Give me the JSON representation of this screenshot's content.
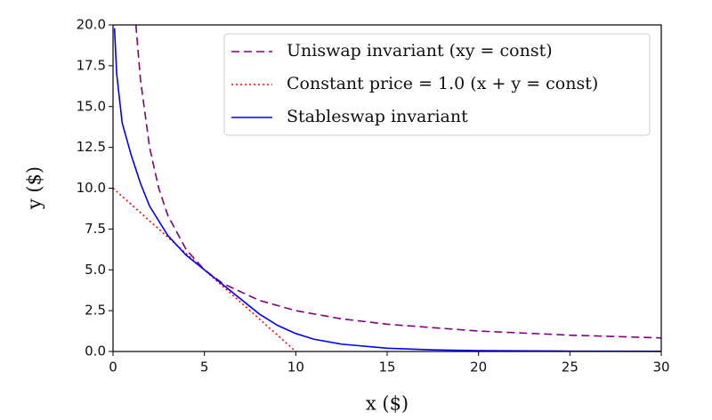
{
  "chart_data": {
    "type": "line",
    "xlabel": "x ($)",
    "ylabel": "y ($)",
    "xlim": [
      0,
      30
    ],
    "ylim": [
      0,
      20
    ],
    "xticks": [
      0,
      5,
      10,
      15,
      20,
      25,
      30
    ],
    "yticks": [
      {
        "value": 0,
        "label": "0.0"
      },
      2.5,
      {
        "value": 5,
        "label": "5.0"
      },
      7.5,
      {
        "value": 10,
        "label": "10.0"
      },
      12.5,
      {
        "value": 15,
        "label": "15.0"
      },
      17.5,
      {
        "value": 20,
        "label": "20.0"
      }
    ],
    "legend": "upper right",
    "series": [
      {
        "name": "Uniswap invariant (xy = const)",
        "color": "#800080",
        "style": "dashed",
        "x": [
          1.25,
          1.5,
          2,
          2.5,
          3,
          4,
          5,
          6,
          8,
          10,
          12.5,
          15,
          20,
          25,
          30
        ],
        "values": [
          20,
          16.67,
          12.5,
          10,
          8.33,
          6.25,
          5,
          4.17,
          3.13,
          2.5,
          2,
          1.67,
          1.25,
          1,
          0.83
        ]
      },
      {
        "name": "Constant price = 1.0 (x + y = const)",
        "color": "#ff0000",
        "style": "dotted",
        "x": [
          0,
          10
        ],
        "values": [
          10,
          0
        ]
      },
      {
        "name": "Stableswap invariant",
        "color": "#0000ff",
        "style": "solid",
        "x": [
          0.08,
          0.2,
          0.5,
          1,
          1.5,
          2,
          3,
          4,
          5,
          6,
          7,
          8,
          9,
          10,
          11,
          12.5,
          15,
          17.5,
          20,
          25,
          30
        ],
        "values": [
          19.8,
          17,
          14,
          12,
          10.3,
          8.9,
          7.1,
          5.9,
          5,
          4.1,
          3.2,
          2.3,
          1.6,
          1.1,
          0.75,
          0.45,
          0.2,
          0.1,
          0.05,
          0.02,
          0.01
        ]
      }
    ]
  }
}
